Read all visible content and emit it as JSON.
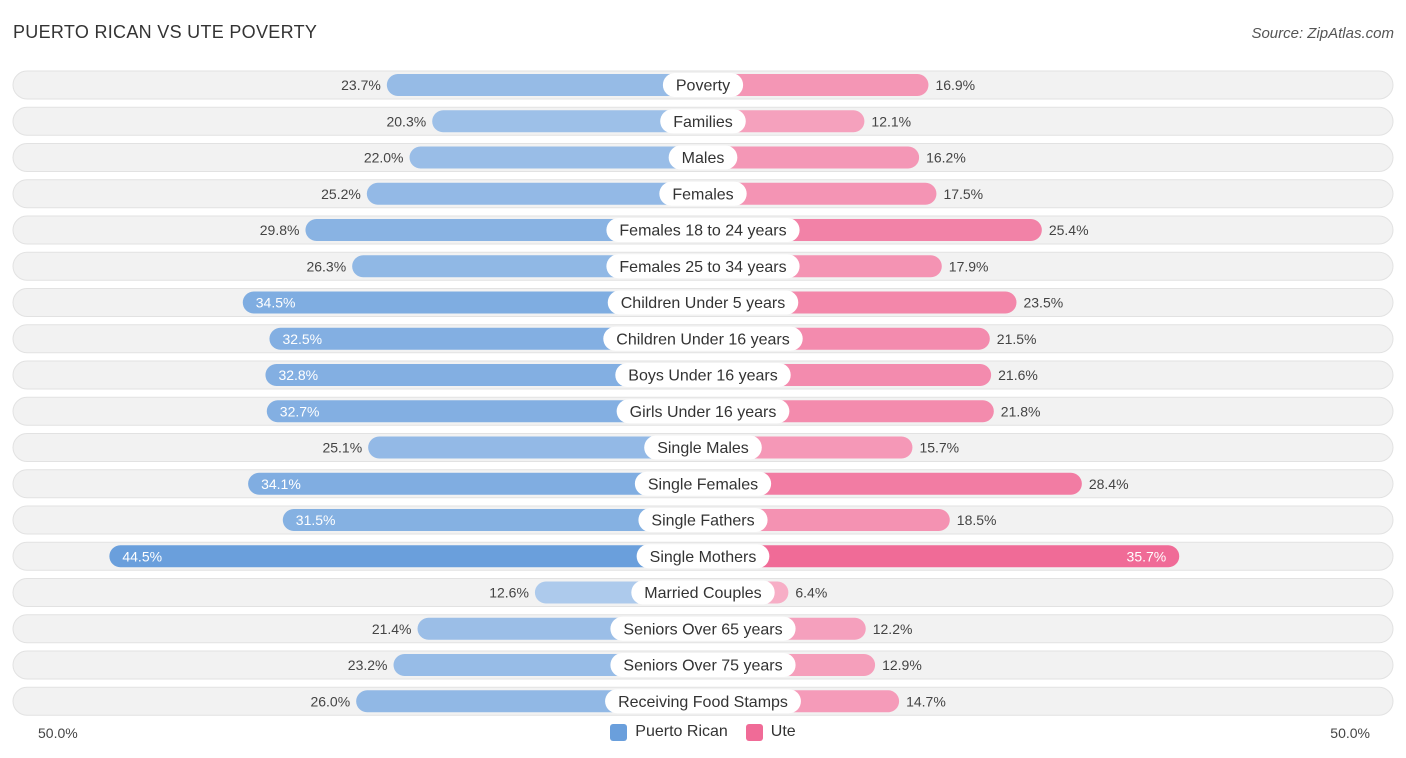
{
  "title": "PUERTO RICAN VS UTE POVERTY",
  "source": "Source: ZipAtlas.com",
  "colors": {
    "left": "#6a9fdc",
    "left_light": "#a9c8ee",
    "right": "#f06b97",
    "right_light": "#f7a9c3",
    "track": "#f1f1f1"
  },
  "legend": {
    "left_label": "Puerto Rican",
    "right_label": "Ute"
  },
  "axis": {
    "left_label": "50.0%",
    "right_label": "50.0%"
  },
  "chart_data": {
    "type": "bar",
    "orientation": "horizontal-diverging",
    "title": "PUERTO RICAN VS UTE POVERTY",
    "xlim": [
      0,
      50
    ],
    "categories": [
      "Poverty",
      "Families",
      "Males",
      "Females",
      "Females 18 to 24 years",
      "Females 25 to 34 years",
      "Children Under 5 years",
      "Children Under 16 years",
      "Boys Under 16 years",
      "Girls Under 16 years",
      "Single Males",
      "Single Females",
      "Single Fathers",
      "Single Mothers",
      "Married Couples",
      "Seniors Over 65 years",
      "Seniors Over 75 years",
      "Receiving Food Stamps"
    ],
    "series": [
      {
        "name": "Puerto Rican",
        "values": [
          23.7,
          20.3,
          22.0,
          25.2,
          29.8,
          26.3,
          34.5,
          32.5,
          32.8,
          32.7,
          25.1,
          34.1,
          31.5,
          44.5,
          12.6,
          21.4,
          23.2,
          26.0
        ],
        "labels": [
          "23.7%",
          "20.3%",
          "22.0%",
          "25.2%",
          "29.8%",
          "26.3%",
          "34.5%",
          "32.5%",
          "32.8%",
          "32.7%",
          "25.1%",
          "34.1%",
          "31.5%",
          "44.5%",
          "12.6%",
          "21.4%",
          "23.2%",
          "26.0%"
        ]
      },
      {
        "name": "Ute",
        "values": [
          16.9,
          12.1,
          16.2,
          17.5,
          25.4,
          17.9,
          23.5,
          21.5,
          21.6,
          21.8,
          15.7,
          28.4,
          18.5,
          35.7,
          6.4,
          12.2,
          12.9,
          14.7
        ],
        "labels": [
          "16.9%",
          "12.1%",
          "16.2%",
          "17.5%",
          "25.4%",
          "17.9%",
          "23.5%",
          "21.5%",
          "21.6%",
          "21.8%",
          "15.7%",
          "28.4%",
          "18.5%",
          "35.7%",
          "6.4%",
          "12.2%",
          "12.9%",
          "14.7%"
        ]
      }
    ]
  }
}
